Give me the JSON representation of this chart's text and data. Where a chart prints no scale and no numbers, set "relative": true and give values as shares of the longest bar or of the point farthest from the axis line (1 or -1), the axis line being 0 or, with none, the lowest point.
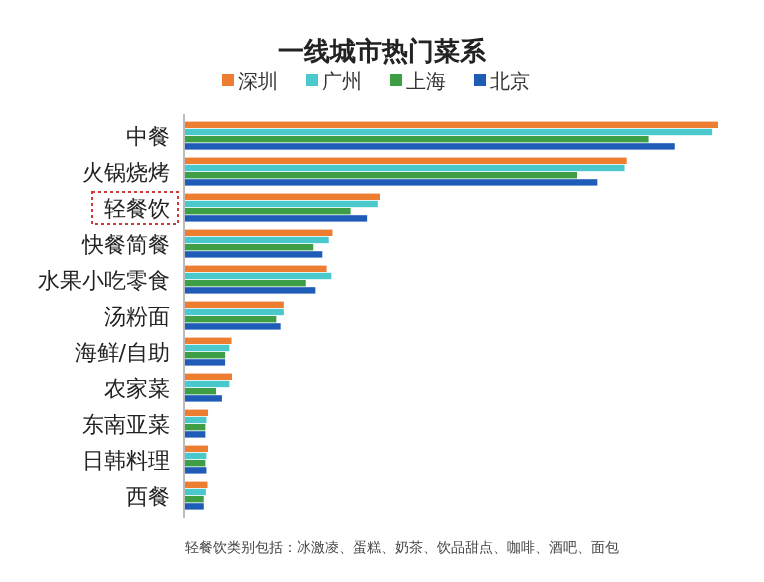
{
  "chart_data": {
    "type": "bar",
    "orientation": "horizontal",
    "relative": true,
    "title": "一线城市热门菜系",
    "legend": "top",
    "categories": [
      "中餐",
      "火锅烧烤",
      "轻餐饮",
      "快餐简餐",
      "水果小吃零食",
      "汤粉面",
      "海鲜/自助",
      "农家菜",
      "东南亚菜",
      "日韩料理",
      "西餐"
    ],
    "series": [
      {
        "name": "深圳",
        "color": "#ed7d31",
        "values": [
          1.0,
          0.829,
          0.367,
          0.278,
          0.267,
          0.187,
          0.089,
          0.09,
          0.045,
          0.045,
          0.044
        ]
      },
      {
        "name": "广州",
        "color": "#4bc8cc",
        "values": [
          0.989,
          0.825,
          0.363,
          0.271,
          0.276,
          0.187,
          0.085,
          0.085,
          0.042,
          0.042,
          0.041
        ]
      },
      {
        "name": "上海",
        "color": "#3d9e46",
        "values": [
          0.87,
          0.736,
          0.312,
          0.242,
          0.228,
          0.173,
          0.077,
          0.06,
          0.04,
          0.04,
          0.037
        ]
      },
      {
        "name": "北京",
        "color": "#1f5cb8",
        "values": [
          0.919,
          0.774,
          0.343,
          0.259,
          0.246,
          0.181,
          0.077,
          0.071,
          0.04,
          0.042,
          0.037
        ]
      }
    ],
    "annotations": [
      "轻餐饮类别包括：冰激凌、蛋糕、奶茶、饮品甜点、咖啡、酒吧、面包"
    ]
  }
}
